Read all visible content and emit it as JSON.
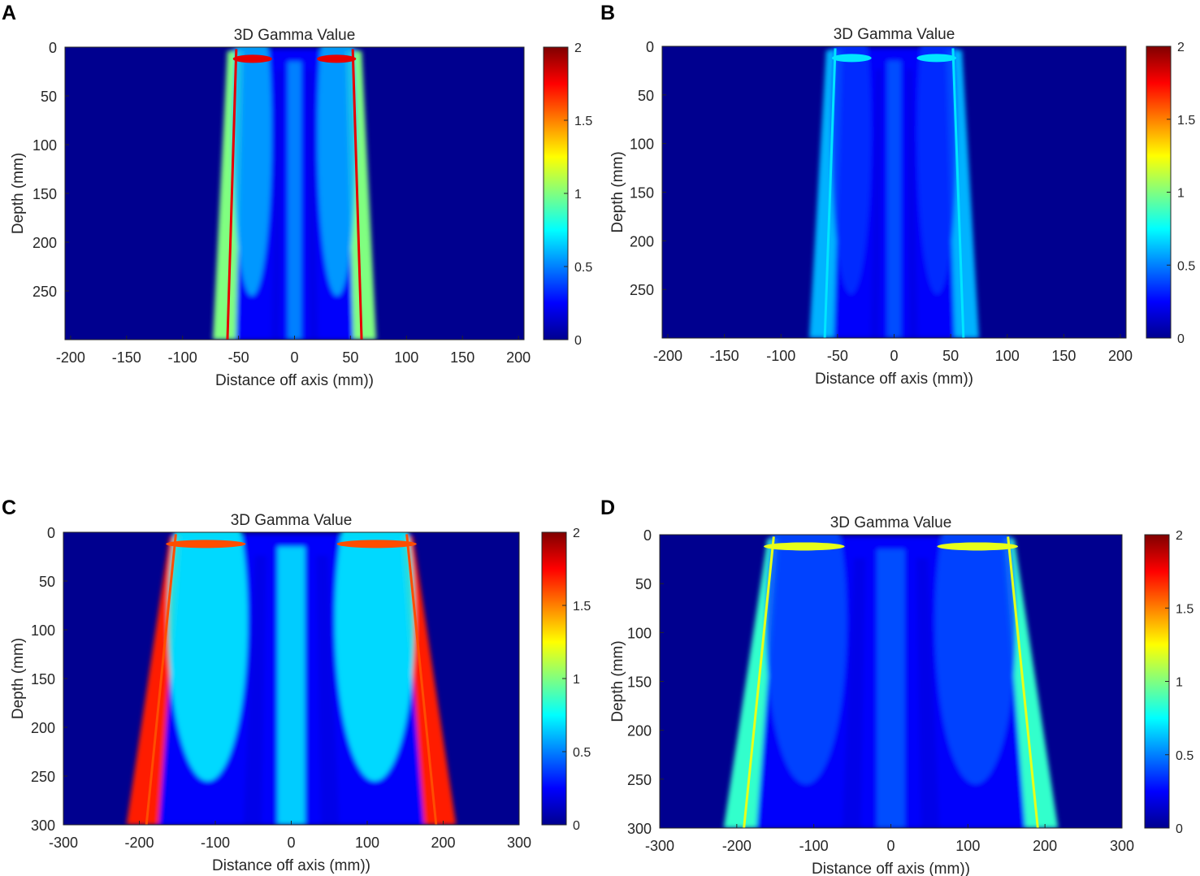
{
  "colors": {
    "background": "#00008F",
    "colormap": [
      "#00008F",
      "#0000FF",
      "#0080FF",
      "#00FFFF",
      "#80FF80",
      "#FFFF00",
      "#FF8000",
      "#FF0000",
      "#800000"
    ]
  },
  "chart_data": [
    {
      "panel": "A",
      "type": "heatmap",
      "title": "3D Gamma Value",
      "xlabel": "Distance off axis (mm))",
      "ylabel": "Depth (mm)",
      "xlim": [
        -205,
        205
      ],
      "ylim": [
        0,
        300
      ],
      "x_ticks": [
        -200,
        -150,
        -100,
        -50,
        0,
        50,
        100,
        150,
        200
      ],
      "y_ticks": [
        0,
        50,
        100,
        150,
        200,
        250
      ],
      "colorbar": {
        "min": 0,
        "max": 2,
        "ticks": [
          0,
          0.5,
          1,
          1.5,
          2
        ]
      },
      "field": {
        "half_width_surface": 50,
        "half_width_bottom": 71,
        "penumbra_gamma": 1.0,
        "edge_line_gamma": 1.8,
        "lobe_gamma": 0.6,
        "lobe_offset": 38,
        "center_gamma": 0.5
      }
    },
    {
      "panel": "B",
      "type": "heatmap",
      "title": "3D Gamma Value",
      "xlabel": "Distance off axis (mm))",
      "ylabel": "Depth (mm)",
      "xlim": [
        -205,
        205
      ],
      "ylim": [
        0,
        300
      ],
      "x_ticks": [
        -200,
        -150,
        -100,
        -50,
        0,
        50,
        100,
        150,
        200
      ],
      "y_ticks": [
        0,
        50,
        100,
        150,
        200,
        250
      ],
      "colorbar": {
        "min": 0,
        "max": 2,
        "ticks": [
          0,
          0.5,
          1,
          1.5,
          2
        ]
      },
      "field": {
        "half_width_surface": 50,
        "half_width_bottom": 73,
        "penumbra_gamma": 0.6,
        "edge_line_gamma": 0.7,
        "lobe_gamma": 0.35,
        "lobe_offset": 38,
        "center_gamma": 0.4
      }
    },
    {
      "panel": "C",
      "type": "heatmap",
      "title": "3D Gamma Value",
      "xlabel": "Distance off axis (mm))",
      "ylabel": "Depth (mm)",
      "xlim": [
        -300,
        300
      ],
      "ylim": [
        0,
        300
      ],
      "x_ticks": [
        -300,
        -200,
        -100,
        0,
        100,
        200,
        300
      ],
      "y_ticks": [
        0,
        50,
        100,
        150,
        200,
        250,
        300
      ],
      "colorbar": {
        "min": 0,
        "max": 2,
        "ticks": [
          0,
          0.5,
          1,
          1.5,
          2
        ]
      },
      "field": {
        "half_width_surface": 150,
        "half_width_bottom": 215,
        "penumbra_gamma": 1.7,
        "edge_line_gamma": 1.6,
        "lobe_gamma": 0.75,
        "lobe_offset": 110,
        "center_gamma": 0.65
      }
    },
    {
      "panel": "D",
      "type": "heatmap",
      "title": "3D Gamma Value",
      "xlabel": "Distance off axis (mm))",
      "ylabel": "Depth (mm)",
      "xlim": [
        -300,
        300
      ],
      "ylim": [
        0,
        300
      ],
      "x_ticks": [
        -300,
        -200,
        -100,
        0,
        100,
        200,
        300
      ],
      "y_ticks": [
        0,
        50,
        100,
        150,
        200,
        250,
        300
      ],
      "colorbar": {
        "min": 0,
        "max": 2,
        "ticks": [
          0,
          0.5,
          1,
          1.5,
          2
        ]
      },
      "field": {
        "half_width_surface": 150,
        "half_width_bottom": 215,
        "penumbra_gamma": 0.85,
        "edge_line_gamma": 1.2,
        "lobe_gamma": 0.4,
        "lobe_offset": 110,
        "center_gamma": 0.4
      }
    }
  ]
}
